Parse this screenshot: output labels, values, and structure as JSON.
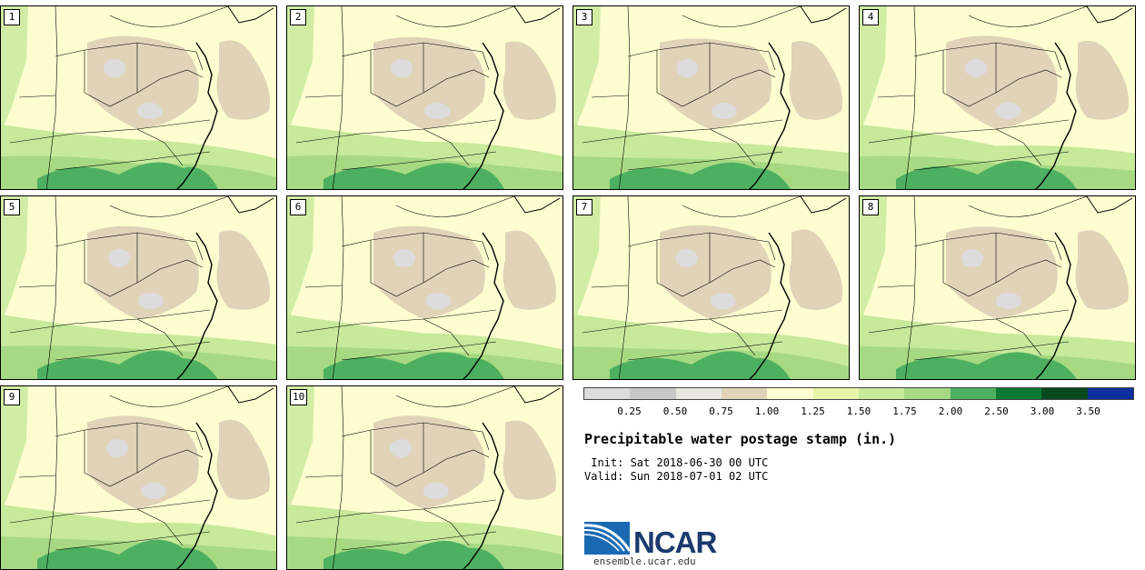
{
  "panels": [
    "1",
    "2",
    "3",
    "4",
    "5",
    "6",
    "7",
    "8",
    "9",
    "10"
  ],
  "legend": {
    "colors": [
      "#dcdcdc",
      "#c8c8c8",
      "#e8e8e0",
      "#e0d3b8",
      "#fdfdd0",
      "#e8f5a8",
      "#c6e99a",
      "#a6d982",
      "#4db060",
      "#0a7a33",
      "#084a20",
      "#0d2fa0"
    ],
    "ticks": [
      "0.25",
      "0.50",
      "0.75",
      "1.00",
      "1.25",
      "1.50",
      "1.75",
      "2.00",
      "2.50",
      "3.00",
      "3.50"
    ]
  },
  "title": "Precipitable water postage stamp (in.)",
  "init_line": " Init: Sat 2018-06-30 00 UTC",
  "valid_line": "Valid: Sun 2018-07-01 02 UTC",
  "logo": {
    "text": "NCAR",
    "url": "ensemble.ucar.edu",
    "color": "#1a5fa8"
  }
}
